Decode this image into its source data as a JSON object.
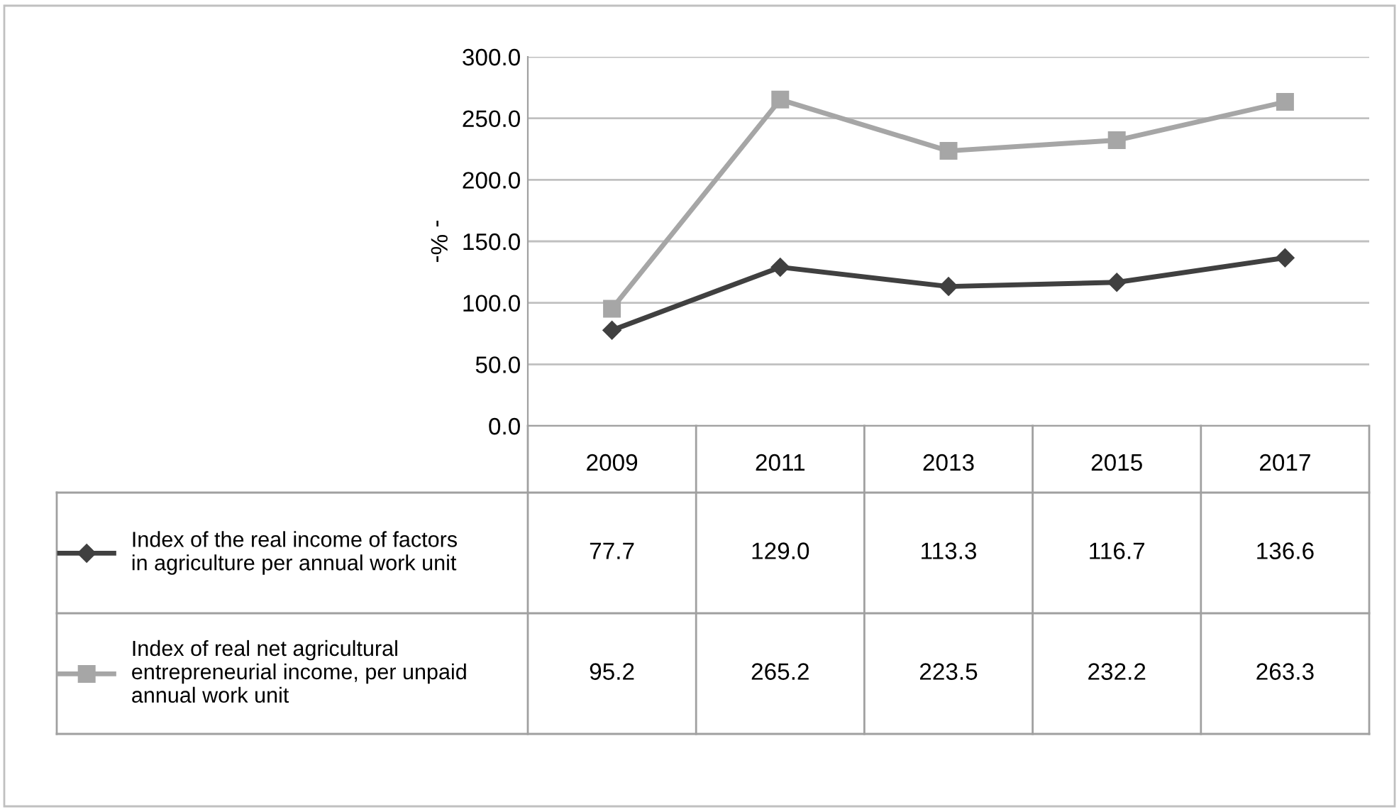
{
  "chart_data": {
    "type": "line",
    "ylabel": "- %-",
    "categories": [
      "2009",
      "2011",
      "2013",
      "2015",
      "2017"
    ],
    "series": [
      {
        "name": "Index of the real income of factors in agriculture per annual work unit",
        "color": "#404040",
        "marker": "diamond",
        "values": [
          77.7,
          129.0,
          113.3,
          116.7,
          136.6
        ],
        "value_labels": [
          "77.7",
          "129.0",
          "113.3",
          "116.7",
          "136.6"
        ]
      },
      {
        "name": "Index of real net agricultural entrepreneurial income, per unpaid annual work unit",
        "color": "#a6a6a6",
        "marker": "square",
        "values": [
          95.2,
          265.2,
          223.5,
          232.2,
          263.3
        ],
        "value_labels": [
          "95.2",
          "265.2",
          "223.5",
          "232.2",
          "263.3"
        ]
      }
    ],
    "ylim": [
      0,
      300
    ],
    "yticks": [
      {
        "value": 0,
        "label": "0.0"
      },
      {
        "value": 50,
        "label": "50.0"
      },
      {
        "value": 100,
        "label": "100.0"
      },
      {
        "value": 150,
        "label": "150.0"
      },
      {
        "value": 200,
        "label": "200.0"
      },
      {
        "value": 250,
        "label": "250.0"
      },
      {
        "value": 300,
        "label": "300.0"
      }
    ],
    "grid": "y",
    "legend": "bottom",
    "line_style": "solid"
  }
}
